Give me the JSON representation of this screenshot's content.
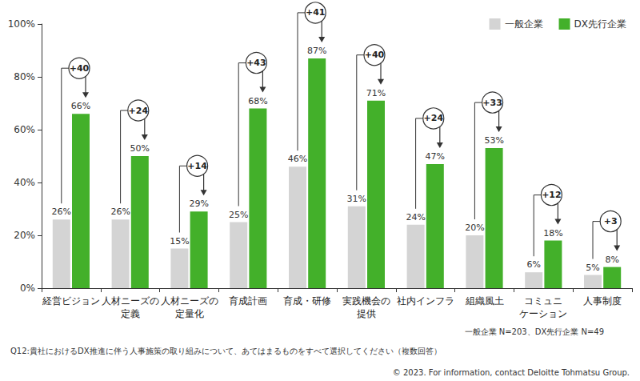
{
  "chart_data": {
    "type": "bar",
    "categories": [
      "経営ビジョン",
      "人材ニーズの\n定義",
      "人材ニーズの\n定量化",
      "育成計画",
      "育成・研修",
      "実践機会の\n提供",
      "社内インフラ",
      "組織風土",
      "コミュニ\nケーション",
      "人事制度"
    ],
    "series": [
      {
        "name": "一般企業",
        "color": "#d4d4d4",
        "values": [
          26,
          26,
          15,
          25,
          46,
          31,
          24,
          20,
          6,
          5
        ],
        "value_labels": [
          "26%",
          "26%",
          "15%",
          "25%",
          "46%",
          "31%",
          "24%",
          "20%",
          "6%",
          "5%"
        ]
      },
      {
        "name": "DX先行企業",
        "color": "#43b02a",
        "values": [
          66,
          50,
          29,
          68,
          87,
          71,
          47,
          53,
          18,
          8
        ],
        "value_labels": [
          "66%",
          "50%",
          "29%",
          "68%",
          "87%",
          "71%",
          "47%",
          "53%",
          "18%",
          "8%"
        ]
      }
    ],
    "annotations": [
      "+40",
      "+24",
      "+14",
      "+43",
      "+41",
      "+40",
      "+24",
      "+33",
      "+12",
      "+3"
    ],
    "ylim": [
      0,
      100
    ],
    "yticks": [
      {
        "value": 0,
        "label": "0%"
      },
      {
        "value": 20,
        "label": "20%"
      },
      {
        "value": 40,
        "label": "40%"
      },
      {
        "value": 60,
        "label": "60%"
      },
      {
        "value": 80,
        "label": "80%"
      },
      {
        "value": 100,
        "label": "100%"
      }
    ],
    "notes": [
      "一般企業 N=203、DX先行企業 N=49",
      "Q12:貴社におけるDX推進に伴う人事施策の取り組みについて、あてはまるものをすべて選択してください（複数回答）",
      "© 2023. For information, contact Deloitte Tohmatsu Group."
    ],
    "legend": "top-right",
    "data_labels": true,
    "grid": false
  }
}
